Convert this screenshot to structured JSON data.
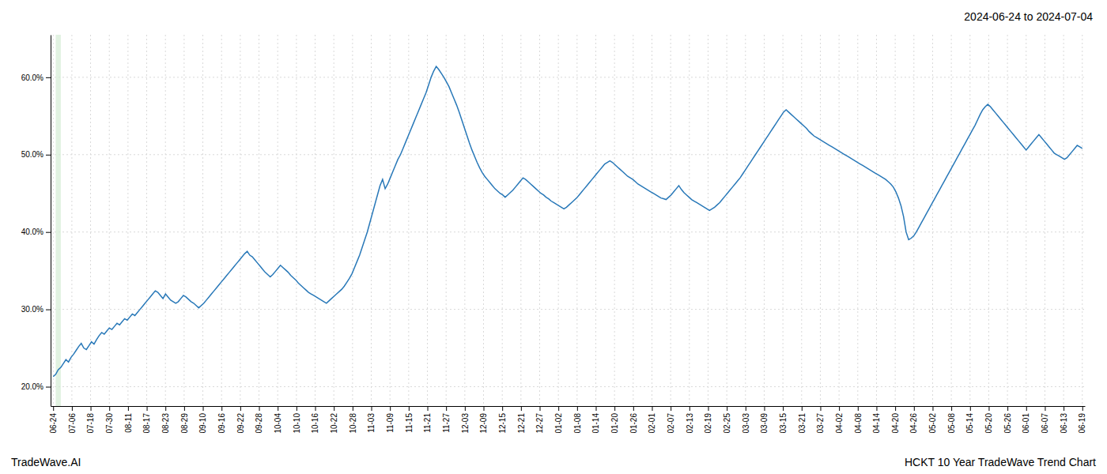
{
  "chart_data": {
    "type": "line",
    "title": "2024-06-24 to 2024-07-04",
    "annotations": [
      "TradeWave.AI",
      "HCKT 10 Year TradeWave Trend Chart"
    ],
    "color": "#2878b8",
    "line_style": "solid",
    "grid": true,
    "highlight": {
      "x": [
        1,
        3
      ],
      "color": "#d4ecd4"
    },
    "xlim": [
      -1,
      404
    ],
    "xticks": [
      {
        "value": 0,
        "label": "06-24"
      },
      {
        "value": 7.327273,
        "label": "07-06"
      },
      {
        "value": 14.654545,
        "label": "07-18"
      },
      {
        "value": 21.981818,
        "label": "07-30"
      },
      {
        "value": 29.309091,
        "label": "08-11"
      },
      {
        "value": 36.636364,
        "label": "08-17"
      },
      {
        "value": 43.963636,
        "label": "08-23"
      },
      {
        "value": 51.290909,
        "label": "08-29"
      },
      {
        "value": 58.618182,
        "label": "09-10"
      },
      {
        "value": 65.945455,
        "label": "09-16"
      },
      {
        "value": 73.272727,
        "label": "09-22"
      },
      {
        "value": 80.6,
        "label": "09-28"
      },
      {
        "value": 87.927273,
        "label": "10-04"
      },
      {
        "value": 95.254545,
        "label": "10-10"
      },
      {
        "value": 102.581818,
        "label": "10-16"
      },
      {
        "value": 109.909091,
        "label": "10-22"
      },
      {
        "value": 117.236364,
        "label": "10-28"
      },
      {
        "value": 124.563636,
        "label": "11-03"
      },
      {
        "value": 131.890909,
        "label": "11-09"
      },
      {
        "value": 139.218182,
        "label": "11-15"
      },
      {
        "value": 146.545455,
        "label": "11-21"
      },
      {
        "value": 153.872727,
        "label": "11-27"
      },
      {
        "value": 161.2,
        "label": "12-03"
      },
      {
        "value": 168.527273,
        "label": "12-09"
      },
      {
        "value": 175.854545,
        "label": "12-15"
      },
      {
        "value": 183.181818,
        "label": "12-21"
      },
      {
        "value": 190.509091,
        "label": "12-27"
      },
      {
        "value": 197.836364,
        "label": "01-02"
      },
      {
        "value": 205.163636,
        "label": "01-08"
      },
      {
        "value": 212.490909,
        "label": "01-14"
      },
      {
        "value": 219.818182,
        "label": "01-20"
      },
      {
        "value": 227.145455,
        "label": "01-26"
      },
      {
        "value": 234.472727,
        "label": "02-01"
      },
      {
        "value": 241.8,
        "label": "02-07"
      },
      {
        "value": 249.127273,
        "label": "02-13"
      },
      {
        "value": 256.454545,
        "label": "02-19"
      },
      {
        "value": 263.781818,
        "label": "02-25"
      },
      {
        "value": 271.109091,
        "label": "03-03"
      },
      {
        "value": 278.436364,
        "label": "03-09"
      },
      {
        "value": 285.763636,
        "label": "03-15"
      },
      {
        "value": 293.090909,
        "label": "03-21"
      },
      {
        "value": 300.418182,
        "label": "03-27"
      },
      {
        "value": 307.745455,
        "label": "04-02"
      },
      {
        "value": 315.072727,
        "label": "04-08"
      },
      {
        "value": 322.4,
        "label": "04-14"
      },
      {
        "value": 329.727273,
        "label": "04-20"
      },
      {
        "value": 337.054545,
        "label": "04-26"
      },
      {
        "value": 344.381818,
        "label": "05-02"
      },
      {
        "value": 351.709091,
        "label": "05-08"
      },
      {
        "value": 359.036364,
        "label": "05-14"
      },
      {
        "value": 366.363636,
        "label": "05-20"
      },
      {
        "value": 373.690909,
        "label": "05-26"
      },
      {
        "value": 381.018182,
        "label": "06-01"
      },
      {
        "value": 388.345455,
        "label": "06-07"
      },
      {
        "value": 395.672727,
        "label": "06-13"
      },
      {
        "value": 403,
        "label": "06-19"
      }
    ],
    "ylim": [
      0.175,
      0.655
    ],
    "yticks": [
      {
        "value": 0.2,
        "label": "20.0%"
      },
      {
        "value": 0.3,
        "label": "30.0%"
      },
      {
        "value": 0.4,
        "label": "40.0%"
      },
      {
        "value": 0.5,
        "label": "50.0%"
      },
      {
        "value": 0.6,
        "label": "60.0%"
      }
    ],
    "values": [
      0.213,
      0.216,
      0.222,
      0.225,
      0.23,
      0.235,
      0.232,
      0.238,
      0.242,
      0.247,
      0.252,
      0.256,
      0.25,
      0.248,
      0.253,
      0.258,
      0.255,
      0.261,
      0.266,
      0.27,
      0.268,
      0.272,
      0.276,
      0.274,
      0.278,
      0.282,
      0.28,
      0.284,
      0.288,
      0.286,
      0.29,
      0.294,
      0.292,
      0.296,
      0.3,
      0.304,
      0.308,
      0.312,
      0.316,
      0.32,
      0.324,
      0.322,
      0.318,
      0.314,
      0.32,
      0.316,
      0.312,
      0.31,
      0.308,
      0.31,
      0.314,
      0.318,
      0.316,
      0.313,
      0.31,
      0.308,
      0.305,
      0.302,
      0.305,
      0.308,
      0.312,
      0.316,
      0.32,
      0.324,
      0.328,
      0.332,
      0.336,
      0.34,
      0.344,
      0.348,
      0.352,
      0.356,
      0.36,
      0.364,
      0.368,
      0.372,
      0.375,
      0.37,
      0.368,
      0.364,
      0.36,
      0.356,
      0.352,
      0.348,
      0.345,
      0.342,
      0.345,
      0.349,
      0.353,
      0.357,
      0.354,
      0.351,
      0.348,
      0.344,
      0.341,
      0.338,
      0.334,
      0.331,
      0.328,
      0.325,
      0.322,
      0.32,
      0.318,
      0.316,
      0.314,
      0.312,
      0.31,
      0.308,
      0.311,
      0.314,
      0.317,
      0.32,
      0.323,
      0.326,
      0.33,
      0.335,
      0.34,
      0.346,
      0.354,
      0.362,
      0.37,
      0.38,
      0.39,
      0.4,
      0.412,
      0.424,
      0.436,
      0.448,
      0.46,
      0.468,
      0.456,
      0.462,
      0.47,
      0.478,
      0.486,
      0.494,
      0.5,
      0.508,
      0.516,
      0.524,
      0.532,
      0.54,
      0.548,
      0.556,
      0.564,
      0.572,
      0.58,
      0.59,
      0.6,
      0.608,
      0.614,
      0.61,
      0.605,
      0.6,
      0.594,
      0.588,
      0.58,
      0.572,
      0.564,
      0.555,
      0.545,
      0.535,
      0.525,
      0.515,
      0.506,
      0.498,
      0.49,
      0.483,
      0.477,
      0.472,
      0.468,
      0.464,
      0.46,
      0.456,
      0.453,
      0.45,
      0.448,
      0.445,
      0.448,
      0.451,
      0.454,
      0.458,
      0.462,
      0.466,
      0.47,
      0.468,
      0.465,
      0.462,
      0.459,
      0.456,
      0.453,
      0.45,
      0.448,
      0.445,
      0.443,
      0.44,
      0.438,
      0.436,
      0.434,
      0.432,
      0.43,
      0.432,
      0.435,
      0.438,
      0.441,
      0.444,
      0.448,
      0.452,
      0.456,
      0.46,
      0.464,
      0.468,
      0.472,
      0.476,
      0.48,
      0.484,
      0.488,
      0.49,
      0.492,
      0.49,
      0.487,
      0.484,
      0.481,
      0.478,
      0.475,
      0.472,
      0.47,
      0.468,
      0.465,
      0.462,
      0.46,
      0.458,
      0.456,
      0.454,
      0.452,
      0.45,
      0.448,
      0.446,
      0.444,
      0.443,
      0.442,
      0.445,
      0.448,
      0.452,
      0.456,
      0.46,
      0.455,
      0.451,
      0.448,
      0.445,
      0.442,
      0.44,
      0.438,
      0.436,
      0.434,
      0.432,
      0.43,
      0.428,
      0.43,
      0.432,
      0.435,
      0.438,
      0.442,
      0.446,
      0.45,
      0.454,
      0.458,
      0.462,
      0.466,
      0.47,
      0.475,
      0.48,
      0.485,
      0.49,
      0.495,
      0.5,
      0.505,
      0.51,
      0.515,
      0.52,
      0.525,
      0.53,
      0.535,
      0.54,
      0.545,
      0.55,
      0.555,
      0.558,
      0.555,
      0.552,
      0.549,
      0.546,
      0.543,
      0.54,
      0.537,
      0.534,
      0.53,
      0.527,
      0.524,
      0.522,
      0.52,
      0.518,
      0.516,
      0.514,
      0.512,
      0.51,
      0.508,
      0.506,
      0.504,
      0.502,
      0.5,
      0.498,
      0.496,
      0.494,
      0.492,
      0.49,
      0.488,
      0.486,
      0.484,
      0.482,
      0.48,
      0.478,
      0.476,
      0.474,
      0.472,
      0.47,
      0.468,
      0.465,
      0.462,
      0.458,
      0.452,
      0.444,
      0.434,
      0.42,
      0.4,
      0.39,
      0.392,
      0.395,
      0.4,
      0.406,
      0.412,
      0.418,
      0.424,
      0.43,
      0.436,
      0.442,
      0.448,
      0.454,
      0.46,
      0.466,
      0.472,
      0.478,
      0.484,
      0.49,
      0.496,
      0.502,
      0.508,
      0.514,
      0.52,
      0.526,
      0.532,
      0.538,
      0.545,
      0.552,
      0.558,
      0.562,
      0.565,
      0.562,
      0.558,
      0.554,
      0.55,
      0.546,
      0.542,
      0.538,
      0.534,
      0.53,
      0.526,
      0.522,
      0.518,
      0.514,
      0.51,
      0.506,
      0.51,
      0.514,
      0.518,
      0.522,
      0.526,
      0.522,
      0.518,
      0.514,
      0.51,
      0.506,
      0.502,
      0.5,
      0.498,
      0.496,
      0.494,
      0.496,
      0.5,
      0.504,
      0.508,
      0.512,
      0.51,
      0.508
    ]
  }
}
